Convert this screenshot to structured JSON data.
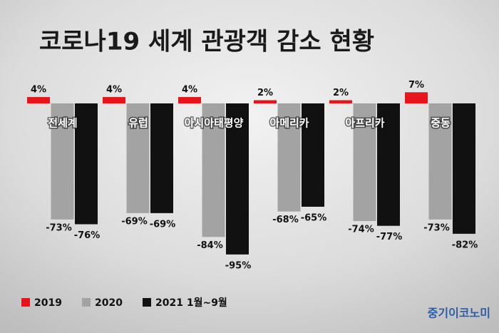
{
  "chart_data": {
    "type": "bar",
    "title": "코로나19 세계 관광객 감소 현황",
    "source": "중기이코노미",
    "categories": [
      "전세계",
      "유럽",
      "아시아태평양",
      "아메리카",
      "아프리카",
      "중동"
    ],
    "series": [
      {
        "name": "2019",
        "color": "#e8141b",
        "values": [
          4,
          4,
          4,
          2,
          2,
          7
        ],
        "value_labels": [
          "4%",
          "4%",
          "4%",
          "2%",
          "2%",
          "7%"
        ]
      },
      {
        "name": "2020",
        "color": "#a3a3a3",
        "values": [
          -73,
          -69,
          -84,
          -68,
          -74,
          -73
        ],
        "value_labels": [
          "-73%",
          "-69%",
          "-84%",
          "-68%",
          "-74%",
          "-73%"
        ]
      },
      {
        "name": "2021 1월~9월",
        "color": "#111111",
        "values": [
          -76,
          -69,
          -95,
          -65,
          -77,
          -82
        ],
        "value_labels": [
          "-76%",
          "-69%",
          "-95%",
          "-65%",
          "-77%",
          "-82%"
        ]
      }
    ],
    "legend": "bottom-left"
  }
}
